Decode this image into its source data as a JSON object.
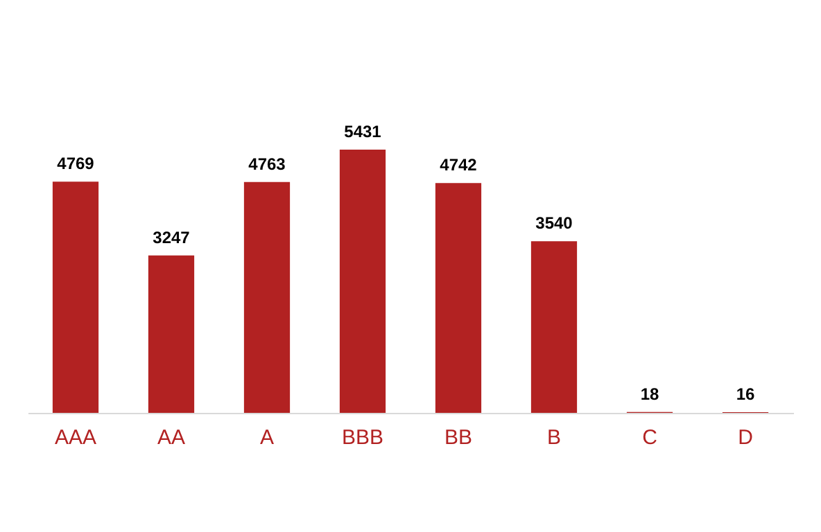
{
  "chart_data": {
    "type": "bar",
    "categories": [
      "AAA",
      "AA",
      "A",
      "BBB",
      "BB",
      "B",
      "C",
      "D"
    ],
    "values": [
      4769,
      3247,
      4763,
      5431,
      4742,
      3540,
      18,
      16
    ],
    "color": "#b22222",
    "data_labels": true
  }
}
